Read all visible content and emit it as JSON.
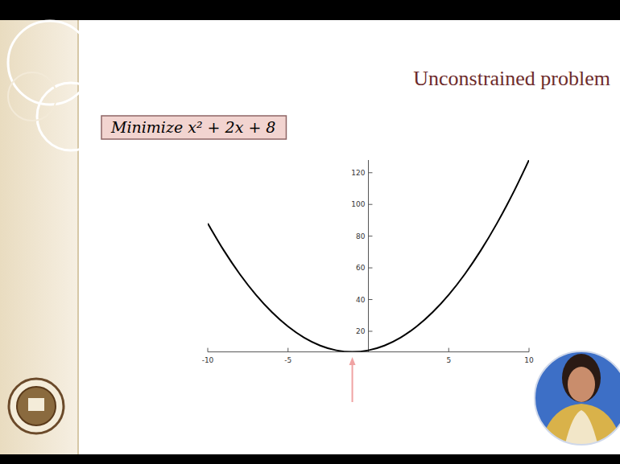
{
  "slide": {
    "heading": "Unconstrained problem"
  },
  "chart_data": {
    "type": "line",
    "title": "Minimize x² + 2x + 8",
    "x": [
      -10,
      -9,
      -8,
      -7,
      -6,
      -5,
      -4,
      -3,
      -2,
      -1,
      0,
      1,
      2,
      3,
      4,
      5,
      6,
      7,
      8,
      9,
      10
    ],
    "values": [
      88,
      71,
      56,
      43,
      32,
      23,
      16,
      11,
      8,
      7,
      8,
      11,
      16,
      23,
      32,
      43,
      56,
      71,
      88,
      107,
      128
    ],
    "color": "#000000",
    "xlim": [
      -10,
      10
    ],
    "ylim": [
      7,
      128
    ],
    "xticks": [
      -10,
      -5,
      5,
      10
    ],
    "yticks": [
      20,
      40,
      60,
      80,
      100,
      120
    ],
    "grid": false,
    "minimum_x": -1
  }
}
